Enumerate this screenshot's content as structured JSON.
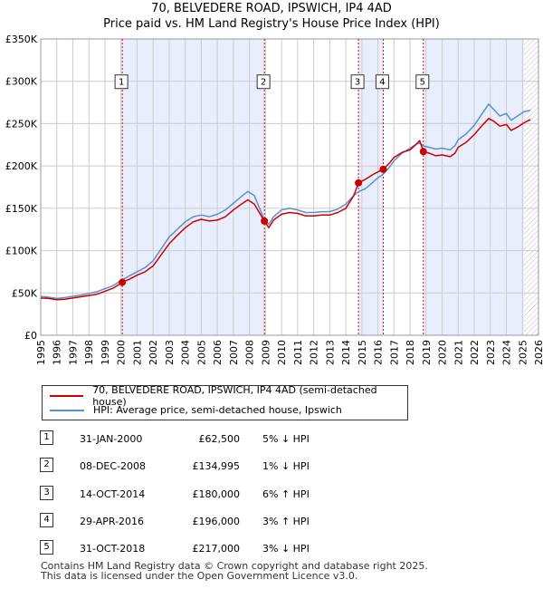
{
  "title": "70, BELVEDERE ROAD, IPSWICH, IP4 4AD",
  "subtitle": "Price paid vs. HM Land Registry's House Price Index (HPI)",
  "colors": {
    "price_line": "#cc0000",
    "hpi_line": "#5b8fd0",
    "shade": "#e8eefb",
    "grid": "#cccccc"
  },
  "chart_data": {
    "type": "line",
    "title": "Price paid vs. HM Land Registry's House Price Index (HPI)",
    "xlabel": "",
    "ylabel": "",
    "xlim": [
      1995,
      2026
    ],
    "ylim": [
      0,
      350000
    ],
    "y_ticks": [
      {
        "value": 0,
        "label": "£0"
      },
      {
        "value": 50000,
        "label": "£50K"
      },
      {
        "value": 100000,
        "label": "£100K"
      },
      {
        "value": 150000,
        "label": "£150K"
      },
      {
        "value": 200000,
        "label": "£200K"
      },
      {
        "value": 250000,
        "label": "£250K"
      },
      {
        "value": 300000,
        "label": "£300K"
      },
      {
        "value": 350000,
        "label": "£350K"
      }
    ],
    "x_ticks": [
      1995,
      1996,
      1997,
      1998,
      1999,
      2000,
      2001,
      2002,
      2003,
      2004,
      2005,
      2006,
      2007,
      2008,
      2009,
      2010,
      2011,
      2012,
      2013,
      2014,
      2015,
      2016,
      2017,
      2018,
      2019,
      2020,
      2021,
      2022,
      2023,
      2024,
      2025,
      2026
    ],
    "shaded_ranges": [
      [
        2000.08,
        2008.93
      ],
      [
        2014.79,
        2016.33
      ],
      [
        2018.83,
        2025.1
      ]
    ],
    "hatched_from": 2025.1,
    "series": [
      {
        "name": "70, BELVEDERE ROAD, IPSWICH, IP4 4AD (semi-detached house)",
        "color": "#cc0000",
        "points": [
          [
            1995.0,
            44000
          ],
          [
            1995.5,
            43500
          ],
          [
            1996.0,
            42000
          ],
          [
            1996.5,
            42500
          ],
          [
            1997.0,
            44000
          ],
          [
            1997.5,
            45500
          ],
          [
            1998.0,
            47000
          ],
          [
            1998.5,
            48500
          ],
          [
            1999.0,
            52000
          ],
          [
            1999.5,
            55500
          ],
          [
            2000.08,
            62500
          ],
          [
            2000.5,
            66000
          ],
          [
            2001.0,
            71000
          ],
          [
            2001.5,
            75000
          ],
          [
            2002.0,
            82000
          ],
          [
            2002.5,
            95000
          ],
          [
            2003.0,
            108000
          ],
          [
            2003.5,
            118000
          ],
          [
            2004.0,
            127000
          ],
          [
            2004.5,
            134000
          ],
          [
            2005.0,
            137000
          ],
          [
            2005.5,
            135000
          ],
          [
            2006.0,
            136000
          ],
          [
            2006.5,
            140000
          ],
          [
            2007.0,
            148000
          ],
          [
            2007.5,
            155000
          ],
          [
            2007.9,
            160000
          ],
          [
            2008.3,
            155000
          ],
          [
            2008.93,
            134995
          ],
          [
            2009.2,
            127000
          ],
          [
            2009.5,
            136000
          ],
          [
            2010.0,
            143000
          ],
          [
            2010.5,
            145000
          ],
          [
            2011.0,
            144000
          ],
          [
            2011.5,
            141000
          ],
          [
            2012.0,
            141000
          ],
          [
            2012.5,
            142000
          ],
          [
            2013.0,
            142000
          ],
          [
            2013.5,
            145000
          ],
          [
            2014.0,
            150000
          ],
          [
            2014.5,
            165000
          ],
          [
            2014.79,
            180000
          ],
          [
            2015.2,
            184000
          ],
          [
            2015.7,
            190000
          ],
          [
            2016.0,
            193000
          ],
          [
            2016.33,
            196000
          ],
          [
            2016.7,
            203000
          ],
          [
            2017.0,
            210000
          ],
          [
            2017.5,
            216000
          ],
          [
            2018.0,
            219000
          ],
          [
            2018.4,
            226000
          ],
          [
            2018.6,
            230000
          ],
          [
            2018.83,
            217000
          ],
          [
            2019.2,
            215000
          ],
          [
            2019.6,
            212000
          ],
          [
            2020.0,
            213000
          ],
          [
            2020.5,
            211000
          ],
          [
            2020.8,
            215000
          ],
          [
            2021.0,
            222000
          ],
          [
            2021.5,
            228000
          ],
          [
            2022.0,
            237000
          ],
          [
            2022.5,
            248000
          ],
          [
            2022.9,
            256000
          ],
          [
            2023.2,
            253000
          ],
          [
            2023.6,
            247000
          ],
          [
            2024.0,
            249000
          ],
          [
            2024.3,
            242000
          ],
          [
            2024.7,
            246000
          ],
          [
            2025.1,
            251000
          ],
          [
            2025.5,
            255000
          ]
        ]
      },
      {
        "name": "HPI: Average price, semi-detached house, Ipswich",
        "color": "#5b8fd0",
        "points": [
          [
            1995.0,
            46000
          ],
          [
            1995.5,
            45000
          ],
          [
            1996.0,
            43500
          ],
          [
            1996.5,
            44500
          ],
          [
            1997.0,
            46000
          ],
          [
            1997.5,
            47500
          ],
          [
            1998.0,
            49500
          ],
          [
            1998.5,
            51500
          ],
          [
            1999.0,
            55000
          ],
          [
            1999.5,
            58500
          ],
          [
            2000.08,
            65500
          ],
          [
            2000.5,
            70000
          ],
          [
            2001.0,
            75000
          ],
          [
            2001.5,
            80000
          ],
          [
            2002.0,
            88000
          ],
          [
            2002.5,
            102000
          ],
          [
            2003.0,
            116000
          ],
          [
            2003.5,
            125000
          ],
          [
            2004.0,
            134000
          ],
          [
            2004.5,
            140000
          ],
          [
            2005.0,
            142000
          ],
          [
            2005.5,
            140000
          ],
          [
            2006.0,
            143000
          ],
          [
            2006.5,
            148000
          ],
          [
            2007.0,
            156000
          ],
          [
            2007.5,
            164000
          ],
          [
            2007.9,
            170000
          ],
          [
            2008.3,
            165000
          ],
          [
            2008.93,
            136500
          ],
          [
            2009.2,
            131000
          ],
          [
            2009.5,
            140000
          ],
          [
            2010.0,
            148000
          ],
          [
            2010.5,
            150000
          ],
          [
            2011.0,
            148000
          ],
          [
            2011.5,
            145000
          ],
          [
            2012.0,
            145000
          ],
          [
            2012.5,
            146000
          ],
          [
            2013.0,
            146000
          ],
          [
            2013.5,
            149000
          ],
          [
            2014.0,
            155000
          ],
          [
            2014.5,
            165000
          ],
          [
            2014.79,
            169800
          ],
          [
            2015.2,
            173000
          ],
          [
            2015.7,
            181000
          ],
          [
            2016.0,
            186000
          ],
          [
            2016.33,
            190300
          ],
          [
            2016.7,
            198000
          ],
          [
            2017.0,
            206000
          ],
          [
            2017.5,
            215000
          ],
          [
            2018.0,
            221000
          ],
          [
            2018.4,
            226000
          ],
          [
            2018.6,
            227000
          ],
          [
            2018.83,
            223700
          ],
          [
            2019.2,
            222000
          ],
          [
            2019.6,
            220000
          ],
          [
            2020.0,
            221000
          ],
          [
            2020.5,
            219000
          ],
          [
            2020.8,
            224000
          ],
          [
            2021.0,
            231000
          ],
          [
            2021.5,
            238000
          ],
          [
            2022.0,
            248000
          ],
          [
            2022.5,
            262000
          ],
          [
            2022.9,
            273000
          ],
          [
            2023.2,
            267000
          ],
          [
            2023.6,
            259000
          ],
          [
            2024.0,
            262000
          ],
          [
            2024.3,
            254000
          ],
          [
            2024.7,
            259000
          ],
          [
            2025.1,
            264000
          ],
          [
            2025.5,
            266000
          ]
        ]
      }
    ],
    "sales": [
      {
        "n": "1",
        "year": 2000.08,
        "price": 62500
      },
      {
        "n": "2",
        "year": 2008.93,
        "price": 134995
      },
      {
        "n": "3",
        "year": 2014.79,
        "price": 180000
      },
      {
        "n": "4",
        "year": 2016.33,
        "price": 196000
      },
      {
        "n": "5",
        "year": 2018.83,
        "price": 217000
      }
    ],
    "marker_label_price": 300000
  },
  "legend": {
    "price_label": "70, BELVEDERE ROAD, IPSWICH, IP4 4AD (semi-detached house)",
    "hpi_label": "HPI: Average price, semi-detached house, Ipswich"
  },
  "transactions": [
    {
      "n": "1",
      "date": "31-JAN-2000",
      "price": "£62,500",
      "hpi": "5% ↓ HPI"
    },
    {
      "n": "2",
      "date": "08-DEC-2008",
      "price": "£134,995",
      "hpi": "1% ↓ HPI"
    },
    {
      "n": "3",
      "date": "14-OCT-2014",
      "price": "£180,000",
      "hpi": "6% ↑ HPI"
    },
    {
      "n": "4",
      "date": "29-APR-2016",
      "price": "£196,000",
      "hpi": "3% ↑ HPI"
    },
    {
      "n": "5",
      "date": "31-OCT-2018",
      "price": "£217,000",
      "hpi": "3% ↓ HPI"
    }
  ],
  "footer": {
    "line1": "Contains HM Land Registry data © Crown copyright and database right 2025.",
    "line2": "This data is licensed under the Open Government Licence v3.0."
  }
}
